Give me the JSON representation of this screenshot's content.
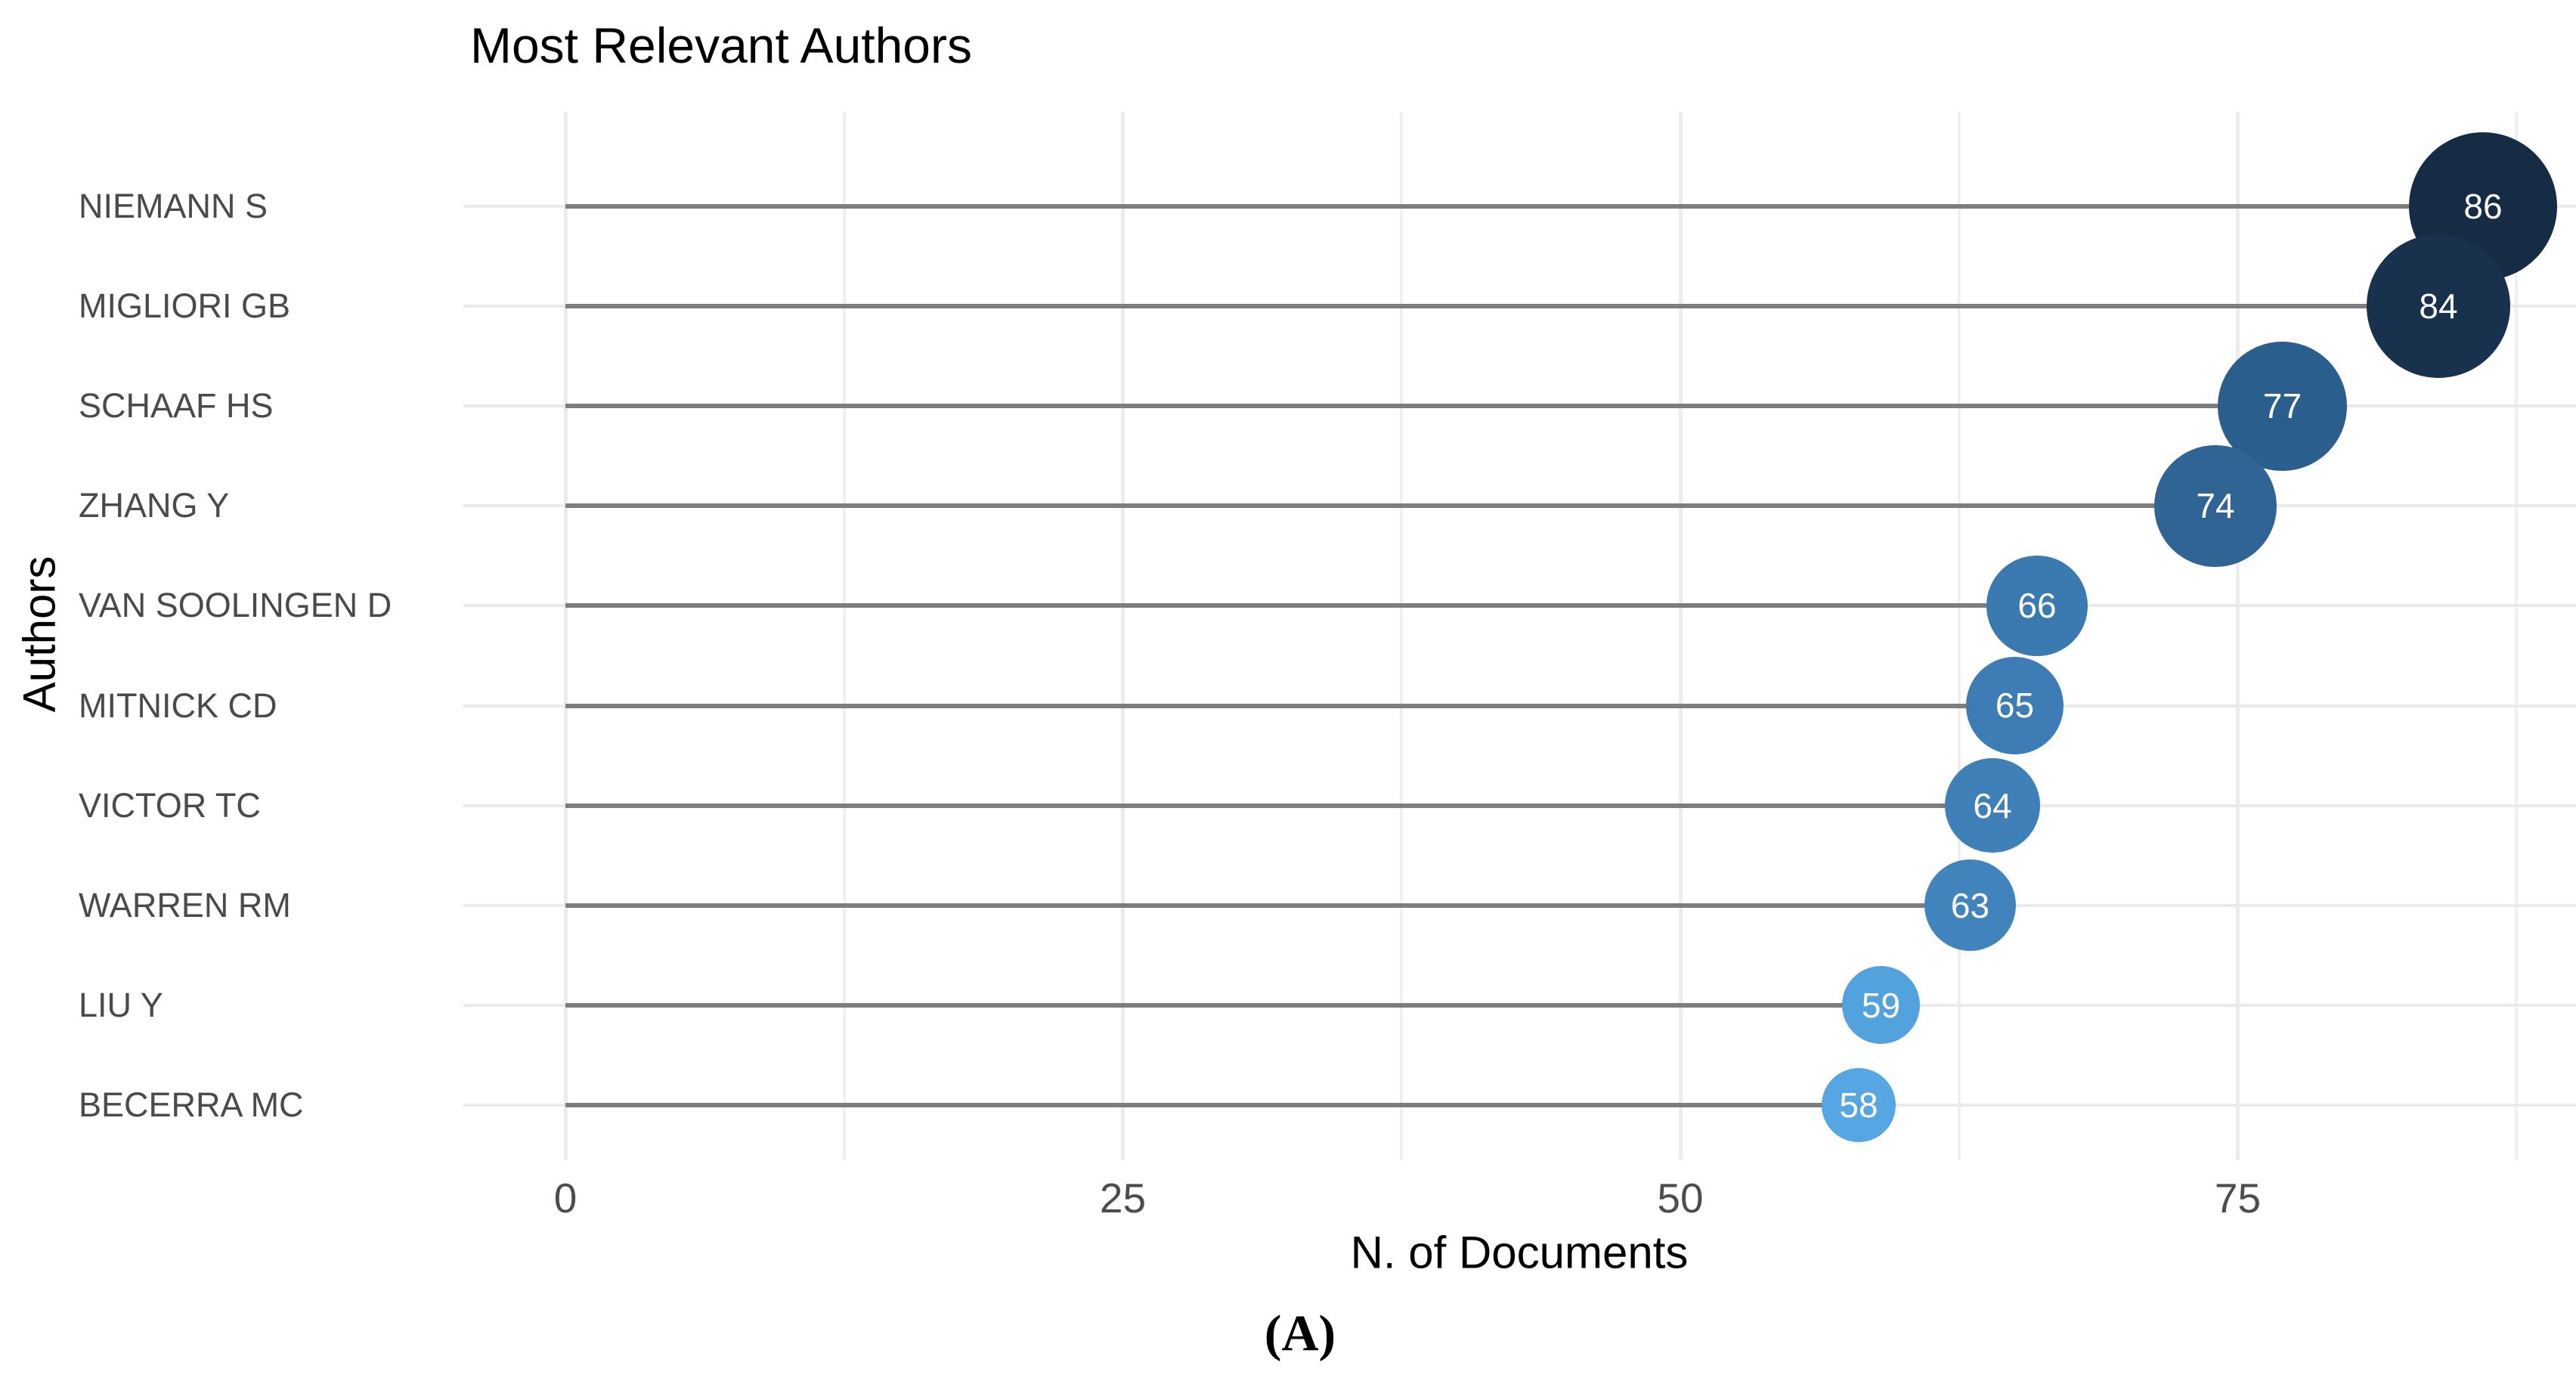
{
  "figure": {
    "title": "Most Relevant Authors",
    "x_axis_title": "N. of Documents",
    "y_axis_title": "Authors",
    "caption": "(A)"
  },
  "chart_data": {
    "type": "scatter",
    "subtype": "horizontal-lollipop-bubble",
    "title": "Most Relevant Authors",
    "xlabel": "N. of Documents",
    "ylabel": "Authors",
    "x_ticks": [
      "0",
      "25",
      "50",
      "75"
    ],
    "x_tick_values": [
      0,
      25,
      50,
      75
    ],
    "x_minor_tick_values": [
      12.5,
      37.5,
      62.5,
      87.5
    ],
    "xlim": [
      0,
      90
    ],
    "grid": "light gray major+minor vertical, major horizontal per category",
    "legend": "none",
    "stem_color": "#7d7d7d",
    "gridline_color": "#ececec",
    "label_color": "#4a4a4a",
    "color_scale": {
      "low_value_color": "#56AEF0",
      "high_value_color": "#132B43"
    },
    "points": [
      {
        "author": "NIEMANN S",
        "value": 86,
        "color": "#152C44"
      },
      {
        "author": "MIGLIORI GB",
        "value": 84,
        "color": "#18314C"
      },
      {
        "author": "SCHAAF HS",
        "value": 77,
        "color": "#2A5E8C"
      },
      {
        "author": "ZHANG Y",
        "value": 74,
        "color": "#2F6494"
      },
      {
        "author": "VAN SOOLINGEN D",
        "value": 66,
        "color": "#3B79B1"
      },
      {
        "author": "MITNICK CD",
        "value": 65,
        "color": "#3D7CB5"
      },
      {
        "author": "VICTOR TC",
        "value": 64,
        "color": "#3F80B9"
      },
      {
        "author": "WARREN RM",
        "value": 63,
        "color": "#4183BD"
      },
      {
        "author": "LIU Y",
        "value": 59,
        "color": "#52A2DE"
      },
      {
        "author": "BECERRA MC",
        "value": 58,
        "color": "#55A6E2"
      }
    ]
  }
}
